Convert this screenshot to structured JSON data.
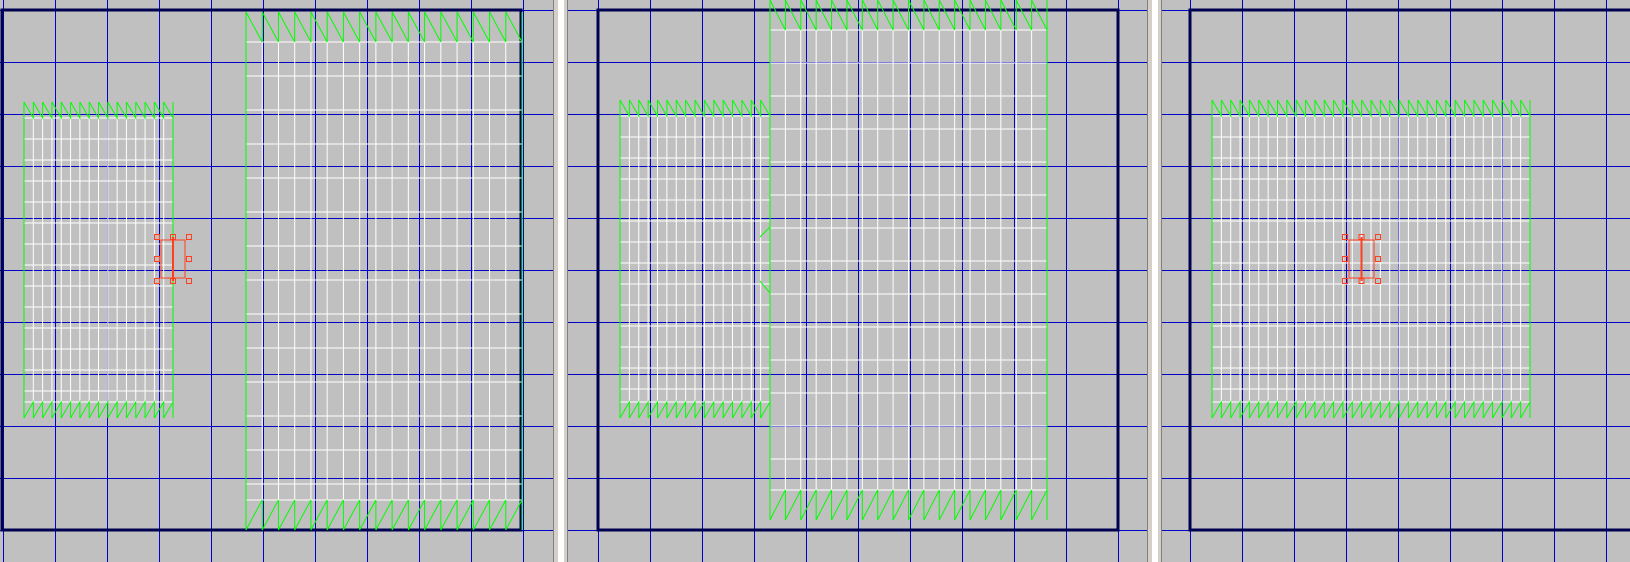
{
  "editor": {
    "viewports": [
      {
        "id": "left",
        "has_selection": true
      },
      {
        "id": "middle",
        "has_selection": false
      },
      {
        "id": "right",
        "has_selection": true
      }
    ],
    "colors": {
      "background": "#c0c0c0",
      "grid": "#0000c8",
      "frame": "#000050",
      "brush_edge": "#00ff00",
      "brush_mesh": "#ffffff",
      "selection": "#ff4020"
    }
  }
}
